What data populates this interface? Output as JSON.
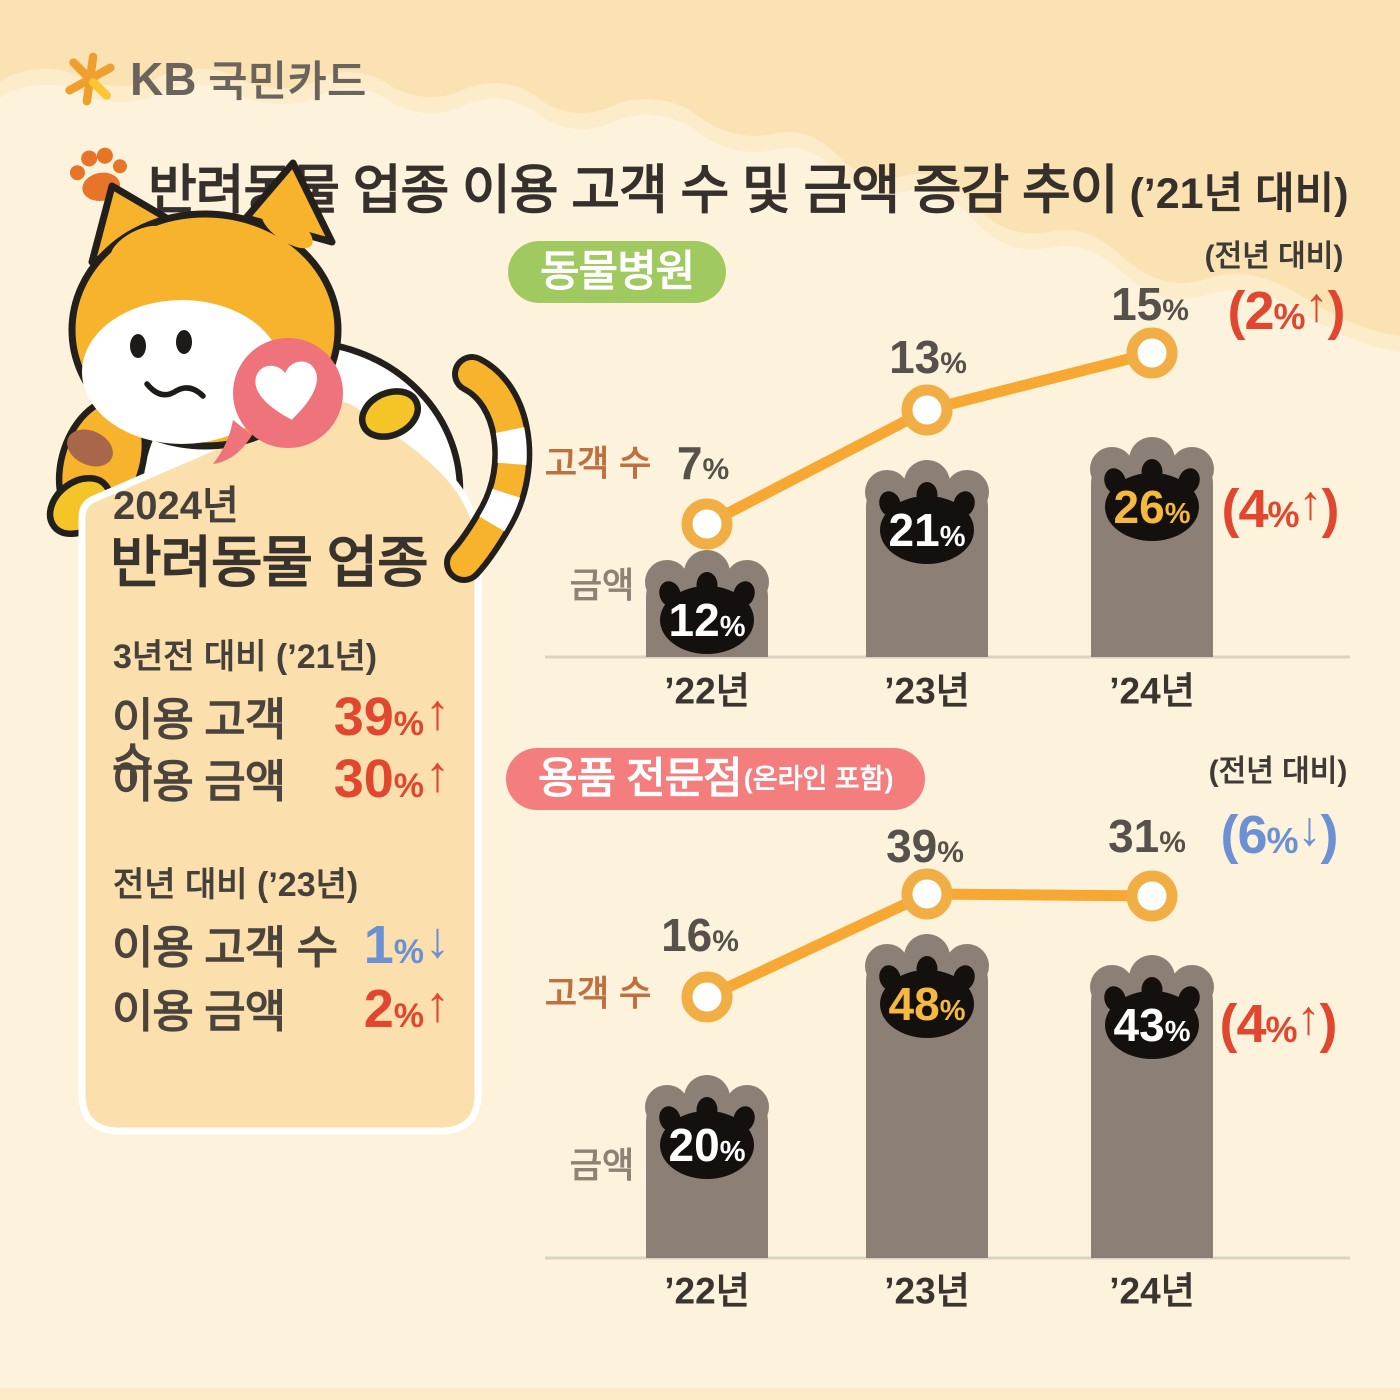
{
  "brand": {
    "kb": "KB",
    "name": "국민카드"
  },
  "title": {
    "text": "반려동물 업종 이용 고객 수 및 금액 증감 추이",
    "suffix": "(’21년 대비)"
  },
  "summary_card": {
    "year": "2024년",
    "title": "반려동물 업종",
    "sections": [
      {
        "header": "3년전 대비 (’21년)",
        "rows": [
          {
            "label": "이용 고객 수",
            "value": "39",
            "unit": "%",
            "direction": "up"
          },
          {
            "label": "이용 금액",
            "value": "30",
            "unit": "%",
            "direction": "up"
          }
        ]
      },
      {
        "header": "전년 대비 (’23년)",
        "rows": [
          {
            "label": "이용 고객 수",
            "value": "1",
            "unit": "%",
            "direction": "down"
          },
          {
            "label": "이용 금액",
            "value": "2",
            "unit": "%",
            "direction": "up"
          }
        ]
      }
    ]
  },
  "chart_data": [
    {
      "type": "bar+line",
      "title": "동물병원",
      "title_note": "",
      "badge_color": "#a0c95f",
      "categories": [
        "’22년",
        "’23년",
        "’24년"
      ],
      "x_note": "(전년 대비)",
      "series": [
        {
          "name": "고객 수",
          "chart": "line",
          "unit": "%",
          "values": [
            7,
            13,
            15
          ],
          "yoy": {
            "value": "2",
            "unit": "%",
            "direction": "up"
          }
        },
        {
          "name": "금액",
          "chart": "bar",
          "unit": "%",
          "values": [
            12,
            21,
            26
          ],
          "emphasis": [
            false,
            false,
            true
          ],
          "yoy": {
            "value": "4",
            "unit": "%",
            "direction": "up"
          }
        }
      ]
    },
    {
      "type": "bar+line",
      "title": "용품 전문점",
      "title_note": "(온라인 포함)",
      "badge_color": "#f47e7d",
      "categories": [
        "’22년",
        "’23년",
        "’24년"
      ],
      "x_note": "(전년 대비)",
      "series": [
        {
          "name": "고객 수",
          "chart": "line",
          "unit": "%",
          "values": [
            16,
            39,
            31
          ],
          "yoy": {
            "value": "6",
            "unit": "%",
            "direction": "down"
          }
        },
        {
          "name": "금액",
          "chart": "bar",
          "unit": "%",
          "values": [
            20,
            48,
            43
          ],
          "emphasis": [
            false,
            true,
            false
          ],
          "yoy": {
            "value": "4",
            "unit": "%",
            "direction": "up"
          }
        }
      ]
    }
  ],
  "colors": {
    "up": "#e0472e",
    "down": "#6b90d3",
    "bar": "#8b7f76",
    "pad": "#14100d",
    "line": "#f6a832",
    "marker_ring": "#f0ae44",
    "highlight": "#f5b93e",
    "customer_label": "#bf7040",
    "amount_label": "#8d8275",
    "bg_top": "#fbe2b3",
    "bg_main": "#fdf3dc"
  }
}
